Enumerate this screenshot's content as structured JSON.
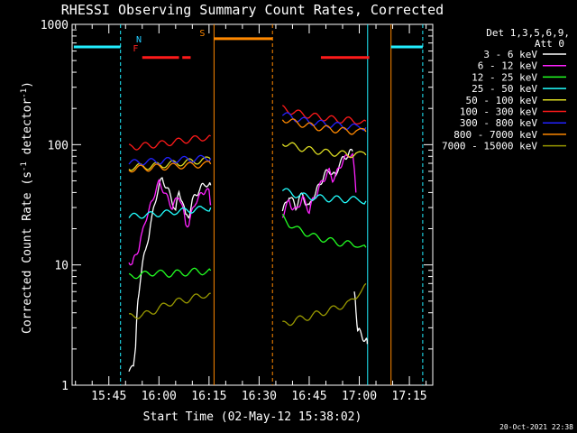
{
  "chart_data": {
    "type": "line",
    "title": "RHESSI Observing Summary Count Rates, Corrected",
    "xlabel": "Start Time (02-May-12 15:38:02)",
    "ylabel_main": "Corrected Count Rate (s",
    "ylabel_sup": "-1",
    "ylabel_mid": " detector",
    "ylabel_end": ")",
    "y_scale": "log",
    "ylim": [
      1,
      1000
    ],
    "x_range_minutes": [
      -4,
      104
    ],
    "x_ticks": [
      {
        "label": "15:45",
        "t": 7
      },
      {
        "label": "16:00",
        "t": 22
      },
      {
        "label": "16:15",
        "t": 37
      },
      {
        "label": "16:30",
        "t": 52
      },
      {
        "label": "16:45",
        "t": 67
      },
      {
        "label": "17:00",
        "t": 82
      },
      {
        "label": "17:15",
        "t": 97
      }
    ],
    "y_ticks": [
      {
        "label": "1",
        "v": 1
      },
      {
        "label": "10",
        "v": 10
      },
      {
        "label": "100",
        "v": 100
      },
      {
        "label": "1000",
        "v": 1000
      }
    ],
    "legend_header": [
      "Det 1,3,5,6,9,",
      "Att 0"
    ],
    "series": [
      {
        "name": "3 - 6 keV",
        "color": "#ffffff",
        "segments": [
          {
            "x": [
              13,
              14.4,
              15,
              15.5,
              16,
              17,
              18,
              19,
              20,
              21,
              22,
              23,
              24,
              25,
              26,
              27,
              28,
              29,
              30,
              31,
              32,
              33,
              34,
              35,
              36,
              37,
              37.5
            ],
            "y": [
              1.3,
              1.4,
              2.2,
              4,
              6,
              10,
              13,
              18,
              25,
              35,
              45,
              52,
              46,
              40,
              34,
              28,
              40,
              35,
              25,
              26,
              34,
              38,
              42,
              45,
              48,
              45,
              46
            ]
          },
          {
            "x": [
              59,
              60,
              61,
              62,
              63,
              64,
              65,
              66,
              67,
              68,
              69,
              70,
              71,
              72,
              73,
              74,
              75,
              76,
              77,
              78,
              79,
              80
            ],
            "y": [
              28,
              32,
              38,
              34,
              30,
              36,
              38,
              33,
              30,
              36,
              40,
              46,
              52,
              58,
              62,
              56,
              55,
              70,
              75,
              80,
              85,
              88
            ]
          },
          {
            "x": [
              80.5,
              81,
              81.5,
              82,
              83,
              84,
              84.4
            ],
            "y": [
              6,
              4,
              3,
              2.8,
              2.5,
              2.4,
              2.2
            ]
          }
        ]
      },
      {
        "name": "6 - 12 keV",
        "color": "#ff22ff",
        "segments": [
          {
            "x": [
              13,
              14,
              15,
              16,
              17,
              18,
              19,
              20,
              21,
              22,
              23,
              24,
              25,
              26,
              27,
              28,
              29,
              30,
              31,
              32,
              33,
              34,
              35,
              36,
              37,
              37.5
            ],
            "y": [
              11,
              10,
              12,
              14,
              18,
              24,
              28,
              34,
              42,
              48,
              44,
              38,
              34,
              30,
              34,
              38,
              30,
              22,
              22,
              28,
              34,
              36,
              40,
              42,
              40,
              32
            ]
          },
          {
            "x": [
              59,
              60,
              61,
              62,
              63,
              64,
              65,
              66,
              67,
              68,
              69,
              70,
              71,
              72,
              73,
              74,
              75,
              76,
              77,
              78,
              79,
              80,
              81
            ],
            "y": [
              26,
              30,
              34,
              30,
              28,
              32,
              36,
              32,
              28,
              34,
              38,
              44,
              50,
              55,
              60,
              52,
              55,
              65,
              72,
              78,
              84,
              80,
              40
            ]
          }
        ]
      },
      {
        "name": "12 - 25 keV",
        "color": "#22ff22",
        "segments": [
          {
            "x": [
              13,
              15,
              17,
              19,
              21,
              23,
              25,
              27,
              29,
              31,
              33,
              35,
              37.5
            ],
            "y": [
              8,
              8.2,
              8.3,
              8.5,
              8.7,
              8.5,
              8.4,
              8.6,
              8.5,
              8.7,
              8.9,
              8.8,
              9
            ]
          },
          {
            "x": [
              59,
              61,
              63,
              65,
              67,
              69,
              71,
              73,
              75,
              77,
              79,
              81,
              84
            ],
            "y": [
              25,
              22,
              20,
              19,
              18,
              17,
              16.5,
              16,
              15.5,
              15,
              15,
              15,
              14
            ]
          }
        ]
      },
      {
        "name": "25 - 50 keV",
        "color": "#22ffff",
        "segments": [
          {
            "x": [
              13,
              15,
              17,
              19,
              21,
              23,
              25,
              27,
              29,
              31,
              33,
              35,
              37.5
            ],
            "y": [
              25,
              25.5,
              26,
              26,
              26.5,
              27,
              27,
              28,
              28,
              28.5,
              29,
              29,
              30
            ]
          },
          {
            "x": [
              59,
              61,
              63,
              65,
              67,
              69,
              71,
              73,
              75,
              77,
              79,
              81,
              84
            ],
            "y": [
              42,
              40,
              38.5,
              37.5,
              37,
              36.5,
              36,
              35.5,
              35.5,
              35,
              35,
              35,
              34
            ]
          }
        ]
      },
      {
        "name": "50 - 100 keV",
        "color": "#dddd22",
        "segments": [
          {
            "x": [
              13,
              15,
              17,
              19,
              21,
              23,
              25,
              27,
              29,
              31,
              33,
              35,
              37.5
            ],
            "y": [
              65,
              65,
              66,
              66,
              67,
              68,
              69,
              70,
              71,
              72,
              73,
              74,
              75
            ]
          },
          {
            "x": [
              59,
              61,
              63,
              65,
              67,
              69,
              71,
              73,
              75,
              77,
              79,
              81,
              84
            ],
            "y": [
              105,
              100,
              96,
              93,
              91,
              89,
              87,
              86,
              85,
              84,
              83,
              83,
              82
            ]
          }
        ]
      },
      {
        "name": "100 - 300 keV",
        "color": "#ff1a1a",
        "segments": [
          {
            "x": [
              13,
              15,
              17,
              19,
              21,
              23,
              25,
              27,
              29,
              31,
              33,
              35,
              37.5
            ],
            "y": [
              95,
              96,
              98,
              99,
              100,
              102,
              104,
              106,
              108,
              110,
              112,
              114,
              118
            ]
          },
          {
            "x": [
              59,
              61,
              63,
              65,
              67,
              69,
              71,
              73,
              75,
              77,
              79,
              81,
              84
            ],
            "y": [
              200,
              192,
              185,
              180,
              175,
              172,
              168,
              165,
              162,
              160,
              160,
              158,
              157
            ]
          }
        ]
      },
      {
        "name": "300 - 800 keV",
        "color": "#2222ff",
        "segments": [
          {
            "x": [
              13,
              15,
              17,
              19,
              21,
              23,
              25,
              27,
              29,
              31,
              33,
              35,
              37.5
            ],
            "y": [
              71,
              71,
              72,
              72,
              73,
              73,
              74,
              75,
              75,
              76,
              76,
              77,
              77
            ]
          },
          {
            "x": [
              59,
              61,
              63,
              65,
              67,
              69,
              71,
              73,
              75,
              77,
              79,
              81,
              84
            ],
            "y": [
              180,
              172,
              165,
              160,
              155,
              152,
              150,
              147,
              145,
              143,
              141,
              140,
              139
            ]
          }
        ]
      },
      {
        "name": "800 - 7000 keV",
        "color": "#ff8800",
        "segments": [
          {
            "x": [
              13,
              15,
              17,
              19,
              21,
              23,
              25,
              27,
              29,
              31,
              33,
              35,
              37.5
            ],
            "y": [
              63,
              63,
              64,
              64,
              65,
              65,
              66,
              66,
              67,
              67,
              68,
              68,
              69
            ]
          },
          {
            "x": [
              59,
              61,
              63,
              65,
              67,
              69,
              71,
              73,
              75,
              77,
              79,
              81,
              84
            ],
            "y": [
              165,
              158,
              152,
              148,
              144,
              140,
              137,
              135,
              133,
              131,
              130,
              129,
              128
            ]
          }
        ]
      },
      {
        "name": "7000 - 15000 keV",
        "color": "#999900",
        "segments": [
          {
            "x": [
              13,
              15,
              17,
              19,
              21,
              23,
              25,
              27,
              29,
              31,
              33,
              35,
              37.5
            ],
            "y": [
              3.7,
              3.8,
              3.8,
              4,
              4.2,
              4.5,
              4.8,
              5,
              5,
              5.2,
              5.4,
              5.6,
              5.8
            ]
          },
          {
            "x": [
              59,
              61,
              63,
              65,
              67,
              69,
              71,
              73,
              75,
              77,
              79,
              81,
              84
            ],
            "y": [
              3.2,
              3.3,
              3.5,
              3.6,
              3.7,
              3.9,
              4,
              4.2,
              4.4,
              4.6,
              4.8,
              5.5,
              7
            ]
          }
        ]
      }
    ],
    "flags": [
      {
        "label": "N",
        "color": "#22ccff",
        "t": 16
      },
      {
        "label": "F",
        "color": "#ff2222",
        "t": 15
      },
      {
        "label": "S",
        "color": "#ff8800",
        "t": 35
      }
    ],
    "flag_bars": [
      {
        "color": "#22eeff",
        "x": [
          -3.5,
          10.5
        ],
        "level": 650
      },
      {
        "color": "#22eeff",
        "x": [
          91.5,
          101
        ],
        "level": 650
      },
      {
        "color": "#ff8800",
        "x": [
          38.5,
          56
        ],
        "level": 760
      },
      {
        "color": "#ff1a1a",
        "x": [
          17,
          28
        ],
        "level": 530
      },
      {
        "color": "#ff1a1a",
        "x": [
          29,
          31.5
        ],
        "level": 530
      },
      {
        "color": "#ff1a1a",
        "x": [
          70.5,
          85
        ],
        "level": 530
      }
    ],
    "orbit_lines": [
      {
        "color": "#ff8800",
        "t": 38.5,
        "style": "solid"
      },
      {
        "color": "#ff8800",
        "t": 56,
        "style": "dashed"
      },
      {
        "color": "#ff8800",
        "t": 91.5,
        "style": "solid"
      },
      {
        "color": "#22eeff",
        "t": 10.5,
        "style": "dashed"
      },
      {
        "color": "#22eeff",
        "t": 84.5,
        "style": "solid"
      },
      {
        "color": "#22eeff",
        "t": 101,
        "style": "dashed"
      }
    ],
    "grid": false,
    "legend_position": "right"
  },
  "footer_timestamp": "20-Oct-2021 22:38"
}
